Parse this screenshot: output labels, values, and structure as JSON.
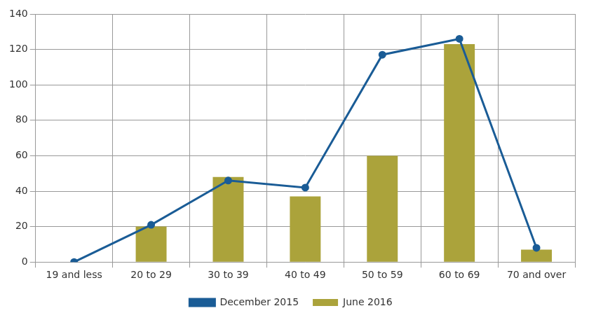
{
  "chart_data": {
    "type": "bar",
    "categories": [
      "19 and less",
      "20 to 29",
      "30 to 39",
      "40 to 49",
      "50 to 59",
      "60 to 69",
      "70 and over"
    ],
    "series": [
      {
        "name": "June 2016",
        "type": "bar",
        "color": "#aba33b",
        "values": [
          0,
          20,
          48,
          37,
          60,
          123,
          7
        ]
      },
      {
        "name": "December 2015",
        "type": "line",
        "color": "#1a5c96",
        "marker": "circle",
        "values": [
          0,
          21,
          46,
          42,
          117,
          126,
          8
        ]
      }
    ],
    "ylim": [
      0,
      140
    ],
    "yticks": [
      0,
      20,
      40,
      60,
      80,
      100,
      120,
      140
    ],
    "grid": true,
    "legend": "bottom"
  }
}
